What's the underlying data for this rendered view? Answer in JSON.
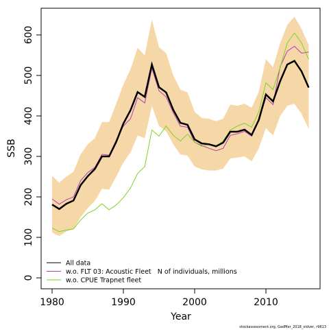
{
  "chart_data": {
    "type": "line",
    "xlabel": "Year",
    "ylabel": "SSB",
    "footnote": "stockassessment.org, GadMer_2018_oldver, r9613",
    "x": [
      1980,
      1981,
      1982,
      1983,
      1984,
      1985,
      1986,
      1987,
      1988,
      1989,
      1990,
      1991,
      1992,
      1993,
      1994,
      1995,
      1996,
      1997,
      1998,
      1999,
      2000,
      2001,
      2002,
      2003,
      2004,
      2005,
      2006,
      2007,
      2008,
      2009,
      2010,
      2011,
      2012,
      2013,
      2014,
      2015,
      2016
    ],
    "band": {
      "color": "#f5d7a8",
      "upper": [
        252,
        235,
        250,
        262,
        305,
        330,
        345,
        385,
        385,
        430,
        478,
        515,
        568,
        550,
        638,
        570,
        555,
        500,
        465,
        458,
        410,
        395,
        393,
        387,
        393,
        428,
        425,
        430,
        420,
        460,
        540,
        520,
        580,
        625,
        645,
        615,
        575
      ],
      "lower": [
        112,
        103,
        115,
        120,
        150,
        172,
        190,
        220,
        218,
        250,
        285,
        310,
        352,
        345,
        425,
        375,
        362,
        330,
        305,
        302,
        275,
        268,
        265,
        265,
        270,
        295,
        297,
        300,
        288,
        320,
        370,
        352,
        400,
        425,
        430,
        405,
        368
      ]
    },
    "series": [
      {
        "name": "All data",
        "color": "#000000",
        "values": [
          181,
          170,
          183,
          191,
          229,
          251,
          269,
          300,
          300,
          336,
          381,
          414,
          459,
          447,
          527,
          471,
          458,
          415,
          383,
          378,
          342,
          332,
          330,
          325,
          334,
          361,
          361,
          366,
          353,
          390,
          453,
          436,
          486,
          527,
          536,
          510,
          470
        ]
      },
      {
        "name": "w.o. FLT 03: Acoustic Fleet   N of individuals, millions",
        "color": "#b03cb0",
        "values": [
          195,
          182,
          193,
          200,
          240,
          260,
          273,
          305,
          303,
          340,
          375,
          393,
          445,
          432,
          518,
          462,
          447,
          408,
          375,
          372,
          335,
          327,
          320,
          314,
          320,
          352,
          356,
          362,
          350,
          388,
          445,
          428,
          522,
          560,
          572,
          555,
          558
        ]
      },
      {
        "name": "w.o. CPUE Trapnet fleet",
        "color": "#7ed321",
        "values": [
          123,
          114,
          118,
          121,
          143,
          160,
          168,
          183,
          168,
          180,
          198,
          222,
          258,
          275,
          365,
          350,
          375,
          352,
          338,
          355,
          335,
          325,
          330,
          325,
          338,
          365,
          375,
          382,
          372,
          410,
          482,
          465,
          520,
          580,
          605,
          580,
          540
        ]
      }
    ],
    "xlim": [
      1978.46,
      2017.6
    ],
    "ylim": [
      -27,
      666
    ],
    "xticks": [
      1980,
      1990,
      2000,
      2010
    ],
    "yticks": [
      0,
      100,
      200,
      300,
      400,
      500,
      600
    ]
  }
}
